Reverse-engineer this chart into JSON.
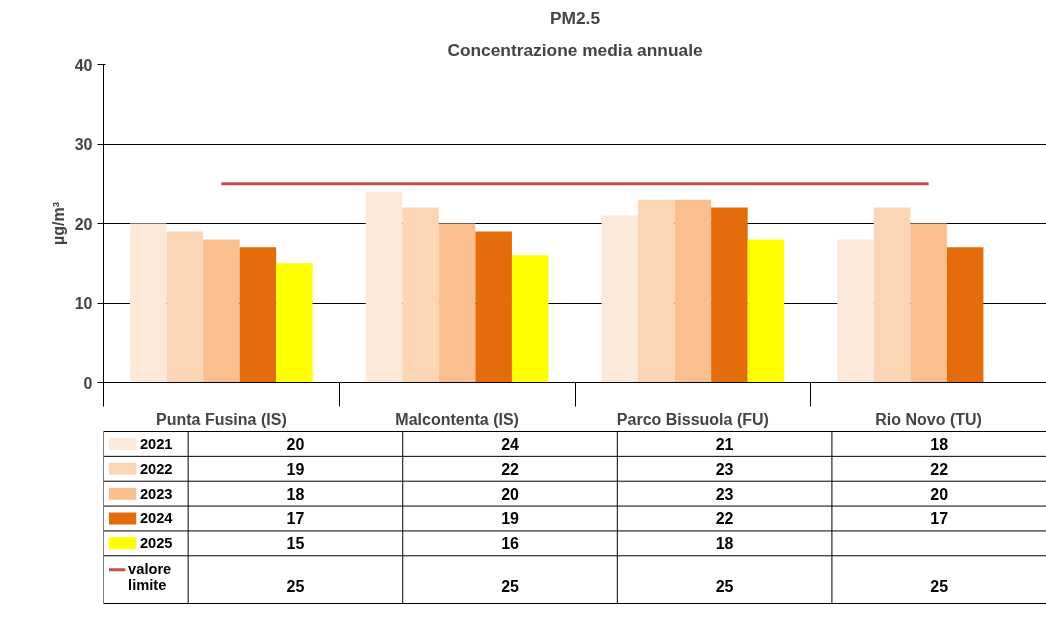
{
  "chart_data": {
    "type": "bar",
    "title": "PM2.5",
    "subtitle": "Concentrazione media annuale",
    "ylabel": "µg/m³",
    "categories": [
      "Punta Fusina (IS)",
      "Malcontenta (IS)",
      "Parco Bissuola (FU)",
      "Rio Novo (TU)"
    ],
    "series": [
      {
        "name": "2021",
        "color": "#fde9d9",
        "values": [
          20,
          24,
          21,
          18
        ]
      },
      {
        "name": "2022",
        "color": "#fcd5b5",
        "values": [
          19,
          22,
          23,
          22
        ]
      },
      {
        "name": "2023",
        "color": "#fabf8f",
        "values": [
          18,
          20,
          23,
          20
        ]
      },
      {
        "name": "2024",
        "color": "#e46c0a",
        "values": [
          17,
          19,
          22,
          17
        ]
      },
      {
        "name": "2025",
        "color": "#ffff00",
        "values": [
          15,
          16,
          18,
          null
        ]
      },
      {
        "name": "valore limite",
        "color": "#c0504d",
        "type": "line",
        "values": [
          25,
          25,
          25,
          25
        ]
      }
    ],
    "ylim": [
      0,
      40
    ],
    "yticks": [
      0,
      10,
      20,
      30,
      40
    ],
    "grid": "y",
    "legend": "bottom",
    "data_labels": true
  }
}
